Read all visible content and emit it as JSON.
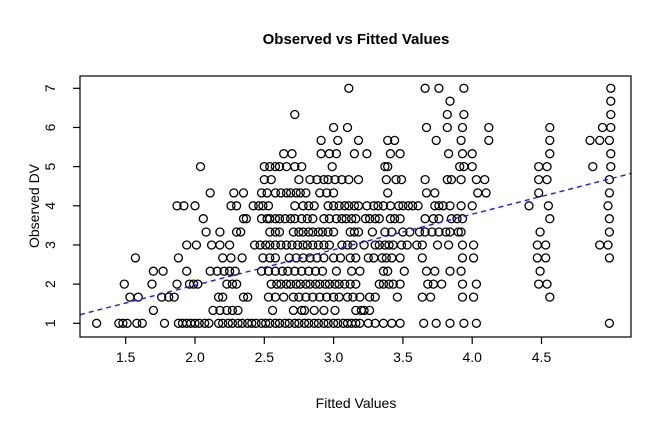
{
  "chart_data": {
    "type": "scatter",
    "title": "Observed vs Fitted Values",
    "xlabel": "Fitted Values",
    "ylabel": "Observed DV",
    "x_tick_values": [
      1.5,
      2.0,
      2.5,
      3.0,
      3.5,
      4.0,
      4.5
    ],
    "x_tick_labels": [
      "1.5",
      "2.0",
      "2.5",
      "3.0",
      "3.5",
      "4.0",
      "4.5"
    ],
    "y_tick_values": [
      1,
      2,
      3,
      4,
      5,
      6,
      7
    ],
    "y_tick_labels": [
      "1",
      "2",
      "3",
      "4",
      "5",
      "6",
      "7"
    ],
    "xlim": [
      1.17,
      5.15
    ],
    "ylim": [
      0.65,
      7.31
    ],
    "grid": false,
    "legend": null,
    "point_style": {
      "marker": "open-circle",
      "color": "#000000",
      "radius_px": 4
    },
    "fit_line": {
      "style": "dashed",
      "color": "#1a1aff",
      "x1": 1.17,
      "y1": 1.22,
      "x2": 5.15,
      "y2": 4.83
    },
    "rows": [
      {
        "y": 7.0,
        "x": [
          3.11,
          3.66,
          3.76,
          3.94,
          5.0
        ]
      },
      {
        "y": 6.67,
        "x": [
          3.84,
          5.0
        ]
      },
      {
        "y": 6.33,
        "x": [
          2.72,
          3.82,
          3.94,
          5.0
        ]
      },
      {
        "y": 6.0,
        "x": [
          3.0,
          3.1,
          3.67,
          3.82,
          3.93,
          4.12,
          4.56,
          4.94,
          5.0
        ]
      },
      {
        "y": 5.67,
        "x": [
          2.91,
          3.03,
          3.18,
          3.39,
          3.44,
          3.74,
          3.92,
          4.12,
          4.56,
          4.85,
          4.92,
          4.99
        ]
      },
      {
        "y": 5.33,
        "x": [
          2.64,
          2.7,
          2.91,
          2.97,
          3.02,
          3.15,
          3.24,
          3.41,
          3.48,
          3.83,
          3.93,
          4.0,
          4.56,
          5.0
        ]
      },
      {
        "y": 5.0,
        "x": [
          2.04,
          2.5,
          2.54,
          2.58,
          2.61,
          2.66,
          2.72,
          2.77,
          2.99,
          3.37,
          3.39,
          3.91,
          3.94,
          4.0,
          4.48,
          4.54,
          4.87,
          5.0
        ]
      },
      {
        "y": 4.67,
        "x": [
          2.5,
          2.55,
          2.75,
          2.83,
          2.88,
          2.93,
          2.96,
          3.01,
          3.06,
          3.11,
          3.18,
          3.38,
          3.45,
          3.49,
          3.66,
          3.82,
          3.85,
          3.92,
          4.03,
          4.09,
          4.48,
          4.54,
          4.99
        ]
      },
      {
        "y": 4.33,
        "x": [
          2.11,
          2.28,
          2.35,
          2.48,
          2.52,
          2.58,
          2.62,
          2.66,
          2.69,
          2.73,
          2.76,
          2.8,
          2.9,
          2.95,
          3.0,
          3.39,
          3.67,
          3.73,
          4.04,
          4.1,
          4.48,
          4.99
        ]
      },
      {
        "y": 4.0,
        "x": [
          1.87,
          1.92,
          2.0,
          2.26,
          2.3,
          2.42,
          2.46,
          2.49,
          2.53,
          2.72,
          2.78,
          2.82,
          2.86,
          2.96,
          3.0,
          3.04,
          3.08,
          3.11,
          3.15,
          3.18,
          3.24,
          3.29,
          3.32,
          3.36,
          3.41,
          3.47,
          3.5,
          3.54,
          3.57,
          3.61,
          3.73,
          3.76,
          3.79,
          3.84,
          3.92,
          4.0,
          4.41,
          4.55,
          4.98
        ]
      },
      {
        "y": 3.67,
        "x": [
          2.06,
          2.35,
          2.37,
          2.48,
          2.52,
          2.54,
          2.58,
          2.61,
          2.65,
          2.69,
          2.72,
          2.77,
          2.81,
          2.85,
          2.93,
          2.97,
          3.02,
          3.06,
          3.09,
          3.13,
          3.16,
          3.23,
          3.26,
          3.3,
          3.33,
          3.41,
          3.44,
          3.48,
          3.66,
          3.72,
          3.76,
          3.85,
          3.89,
          3.93,
          4.56,
          4.99
        ]
      },
      {
        "y": 3.33,
        "x": [
          2.08,
          2.18,
          2.3,
          2.33,
          2.54,
          2.58,
          2.61,
          2.71,
          2.75,
          2.78,
          2.82,
          2.85,
          2.89,
          2.92,
          2.96,
          3.0,
          3.12,
          3.15,
          3.18,
          3.28,
          3.37,
          3.42,
          3.5,
          3.55,
          3.62,
          3.66,
          3.71,
          3.76,
          3.81,
          3.84,
          3.9,
          3.92,
          4.49,
          4.99
        ]
      },
      {
        "y": 3.0,
        "x": [
          1.94,
          2.01,
          2.12,
          2.18,
          2.25,
          2.43,
          2.47,
          2.51,
          2.54,
          2.58,
          2.62,
          2.66,
          2.7,
          2.74,
          2.78,
          2.81,
          2.85,
          2.89,
          2.93,
          2.97,
          3.06,
          3.1,
          3.14,
          3.22,
          3.3,
          3.33,
          3.37,
          3.4,
          3.43,
          3.49,
          3.53,
          3.6,
          3.64,
          3.75,
          3.83,
          3.93,
          4.01,
          4.47,
          4.53,
          4.92,
          4.98
        ]
      },
      {
        "y": 2.67,
        "x": [
          1.57,
          1.88,
          2.2,
          2.26,
          2.34,
          2.49,
          2.54,
          2.58,
          2.68,
          2.73,
          2.78,
          2.83,
          2.88,
          2.93,
          3.0,
          3.05,
          3.12,
          3.16,
          3.25,
          3.29,
          3.35,
          3.38,
          3.42,
          3.48,
          3.64,
          3.93,
          4.01,
          4.47,
          4.53,
          4.99
        ]
      },
      {
        "y": 2.33,
        "x": [
          1.7,
          1.77,
          1.94,
          2.11,
          2.16,
          2.21,
          2.25,
          2.29,
          2.48,
          2.53,
          2.58,
          2.63,
          2.67,
          2.72,
          2.77,
          2.82,
          2.87,
          2.92,
          3.02,
          3.13,
          3.19,
          3.36,
          3.39,
          3.51,
          3.67,
          3.73,
          3.84,
          3.92,
          4.49
        ]
      },
      {
        "y": 2.0,
        "x": [
          1.49,
          1.69,
          1.87,
          1.96,
          1.99,
          2.02,
          2.23,
          2.27,
          2.3,
          2.55,
          2.59,
          2.62,
          2.66,
          2.69,
          2.73,
          2.76,
          2.8,
          2.83,
          2.87,
          2.9,
          2.94,
          2.97,
          3.01,
          3.04,
          3.08,
          3.12,
          3.16,
          3.33,
          3.36,
          3.4,
          3.43,
          3.48,
          3.68,
          3.72,
          3.78,
          3.93,
          4.03,
          4.48,
          4.54
        ]
      },
      {
        "y": 1.67,
        "x": [
          1.53,
          1.59,
          1.76,
          1.81,
          1.85,
          2.17,
          2.2,
          2.35,
          2.38,
          2.53,
          2.58,
          2.64,
          2.71,
          2.75,
          2.8,
          2.85,
          2.9,
          2.95,
          3.0,
          3.04,
          3.1,
          3.14,
          3.19,
          3.26,
          3.3,
          3.46,
          3.64,
          3.7,
          3.93,
          4.01,
          4.56
        ]
      },
      {
        "y": 1.33,
        "x": [
          1.7,
          2.13,
          2.18,
          2.23,
          2.27,
          2.31,
          2.56,
          2.71,
          2.77,
          2.79,
          2.86,
          2.93,
          3.01,
          3.16,
          3.2,
          3.22,
          3.26
        ]
      },
      {
        "y": 1.0,
        "x": [
          1.29,
          1.45,
          1.48,
          1.51,
          1.58,
          1.62,
          1.78,
          1.88,
          1.91,
          1.94,
          1.97,
          2.0,
          2.03,
          2.07,
          2.1,
          2.17,
          2.2,
          2.24,
          2.27,
          2.31,
          2.34,
          2.38,
          2.41,
          2.44,
          2.48,
          2.51,
          2.54,
          2.58,
          2.61,
          2.65,
          2.68,
          2.72,
          2.75,
          2.79,
          2.82,
          2.86,
          2.89,
          2.93,
          2.96,
          3.0,
          3.03,
          3.07,
          3.1,
          3.13,
          3.16,
          3.19,
          3.25,
          3.3,
          3.36,
          3.42,
          3.48,
          3.65,
          3.74,
          3.84,
          3.94,
          4.03,
          4.99
        ]
      }
    ]
  }
}
